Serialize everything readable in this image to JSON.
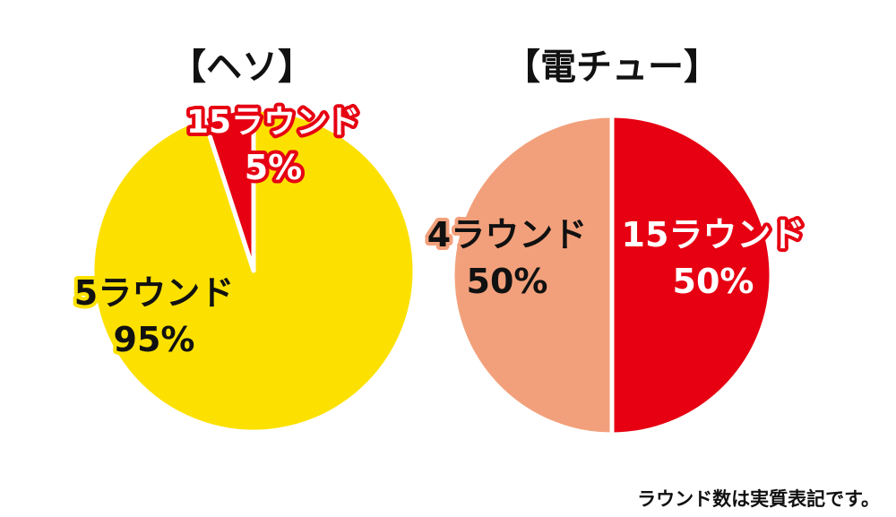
{
  "note": "ラウンド数は実質表記です。",
  "chart_data": [
    {
      "type": "pie",
      "title": "【ヘソ】",
      "slices": [
        {
          "label": "5ラウンド",
          "percent_label": "95%",
          "value": 95,
          "color": "#FCE100"
        },
        {
          "label": "15ラウンド",
          "percent_label": "5%",
          "value": 5,
          "color": "#E60012"
        }
      ]
    },
    {
      "type": "pie",
      "title": "【電チュー】",
      "slices": [
        {
          "label": "4ラウンド",
          "percent_label": "50%",
          "value": 50,
          "color": "#F2A07B"
        },
        {
          "label": "15ラウンド",
          "percent_label": "50%",
          "value": 50,
          "color": "#E60012"
        }
      ]
    }
  ]
}
